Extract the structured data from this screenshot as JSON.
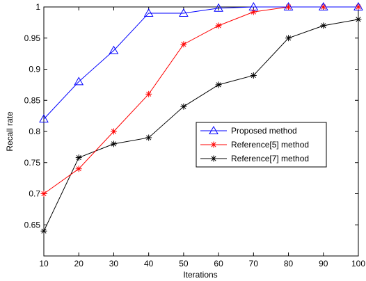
{
  "chart_data": {
    "type": "line",
    "title": "",
    "xlabel": "Iterations",
    "ylabel": "Recall rate",
    "xlim": [
      10,
      100
    ],
    "ylim": [
      0.6,
      1.0
    ],
    "x": [
      10,
      20,
      30,
      40,
      50,
      60,
      70,
      80,
      90,
      100
    ],
    "x_ticks": [
      "10",
      "20",
      "30",
      "40",
      "50",
      "60",
      "70",
      "80",
      "90",
      "100"
    ],
    "y_ticks": [
      "0.65",
      "0.7",
      "0.75",
      "0.8",
      "0.85",
      "0.9",
      "0.95",
      "1"
    ],
    "y_tick_values": [
      0.65,
      0.7,
      0.75,
      0.8,
      0.85,
      0.9,
      0.95,
      1.0
    ],
    "grid": false,
    "legend_position": "center-right",
    "series": [
      {
        "name": "Proposed method",
        "color": "#0000ff",
        "marker": "triangle",
        "values": [
          0.82,
          0.88,
          0.93,
          0.99,
          0.99,
          0.998,
          1.0,
          1.0,
          1.0,
          1.0
        ]
      },
      {
        "name": "Reference[5] method",
        "color": "#ff0000",
        "marker": "star",
        "values": [
          0.7,
          0.74,
          0.8,
          0.86,
          0.94,
          0.97,
          0.992,
          1.0,
          1.0,
          1.0
        ]
      },
      {
        "name": "Reference[7] method",
        "color": "#000000",
        "marker": "star",
        "values": [
          0.64,
          0.758,
          0.78,
          0.79,
          0.84,
          0.875,
          0.89,
          0.95,
          0.97,
          0.98
        ]
      }
    ]
  }
}
